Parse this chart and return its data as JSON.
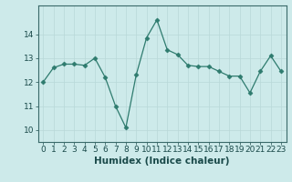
{
  "x": [
    0,
    1,
    2,
    3,
    4,
    5,
    6,
    7,
    8,
    9,
    10,
    11,
    12,
    13,
    14,
    15,
    16,
    17,
    18,
    19,
    20,
    21,
    22,
    23
  ],
  "y": [
    12.0,
    12.6,
    12.75,
    12.75,
    12.7,
    13.0,
    12.2,
    11.0,
    10.1,
    12.3,
    13.85,
    14.6,
    13.35,
    13.15,
    12.7,
    12.65,
    12.65,
    12.45,
    12.25,
    12.25,
    11.55,
    12.45,
    13.1,
    12.45
  ],
  "line_color": "#2e7b6e",
  "marker": "D",
  "marker_size": 2.5,
  "bg_color": "#cdeaea",
  "grid_color": "#b8d8d8",
  "xlabel": "Humidex (Indice chaleur)",
  "xlim": [
    -0.5,
    23.5
  ],
  "ylim": [
    9.5,
    15.2
  ],
  "yticks": [
    10,
    11,
    12,
    13,
    14
  ],
  "xticks": [
    0,
    1,
    2,
    3,
    4,
    5,
    6,
    7,
    8,
    9,
    10,
    11,
    12,
    13,
    14,
    15,
    16,
    17,
    18,
    19,
    20,
    21,
    22,
    23
  ],
  "xlabel_fontsize": 7.5,
  "tick_fontsize": 6.5,
  "tick_color": "#1a4a4a"
}
